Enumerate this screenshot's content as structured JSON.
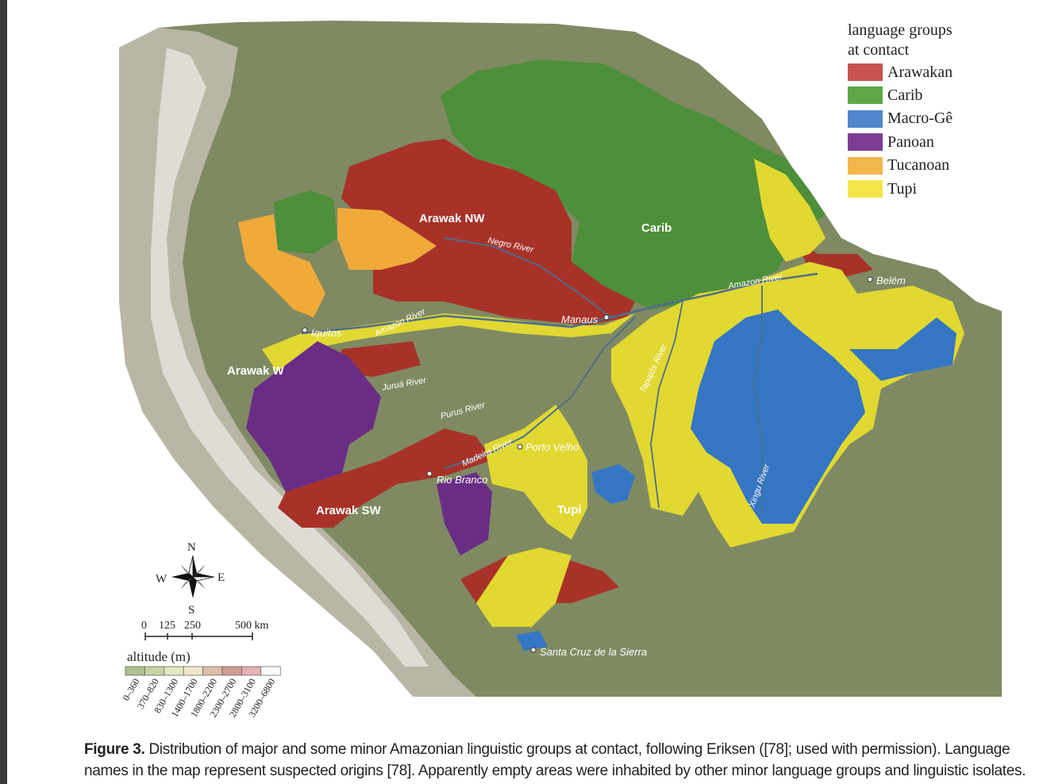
{
  "legend": {
    "title_line1": "language groups",
    "title_line2": "at contact",
    "items": [
      {
        "label": "Arawakan",
        "color": "#c8534f"
      },
      {
        "label": "Carib",
        "color": "#5ea746"
      },
      {
        "label": "Macro-Gê",
        "color": "#4f86cc"
      },
      {
        "label": "Panoan",
        "color": "#7c3c96"
      },
      {
        "label": "Tucanoan",
        "color": "#f3b64b"
      },
      {
        "label": "Tupi",
        "color": "#f3e44a"
      }
    ]
  },
  "region_labels": {
    "arawak_nw": "Arawak NW",
    "carib": "Carib",
    "arawak_w": "Arawak W",
    "arawak_sw": "Arawak SW",
    "tupi": "Tupi"
  },
  "rivers": {
    "negro": "Negro River",
    "amazon_west": "Amazon River",
    "amazon_east": "Amazon River",
    "jurua": "Juruá River",
    "purus": "Purus River",
    "madeira": "Madeira River",
    "tapajos": "Tapajós River",
    "xingu": "Xingu River"
  },
  "cities": {
    "iquitos": "Iquitos",
    "manaus": "Manaus",
    "belem": "Belém",
    "porto_velho": "Porto Velho",
    "rio_branco": "Rio Branco",
    "santa_cruz": "Santa Cruz de la Sierra"
  },
  "compass": {
    "n": "N",
    "s": "S",
    "e": "E",
    "w": "W"
  },
  "scale_bar": {
    "ticks": [
      "0",
      "125",
      "250",
      "500 km"
    ]
  },
  "altitude": {
    "title": "altitude (m)",
    "bins": [
      "0–360",
      "370–820",
      "830–1300",
      "1400–1700",
      "1800–2200",
      "2300–2700",
      "2800–3100",
      "3200–6800"
    ],
    "colors": [
      "#aac28f",
      "#c5d3a2",
      "#e2e7bf",
      "#efe7c9",
      "#dcbfa8",
      "#cf9e92",
      "#e6b2b5",
      "#fbfbfb"
    ]
  },
  "caption": {
    "label": "Figure 3.",
    "text": " Distribution of major and some minor Amazonian linguistic groups at contact, following Eriksen ([78]; used with permission). Language names in the map represent suspected origins [78]. Apparently empty areas were inhabited by other minor language groups and linguistic isolates."
  },
  "colors": {
    "ocean": "#ffffff",
    "lowland": "#7f8a63",
    "highland": "#b9b6a5",
    "peaks": "#e6e2dc",
    "river": "#4f6d8c"
  }
}
